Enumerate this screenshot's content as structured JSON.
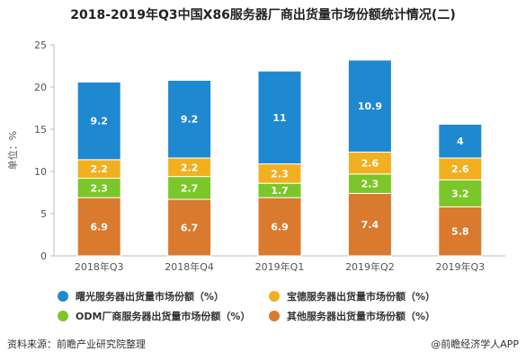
{
  "title": "2018-2019年Q3中国X86服务器厂商出货量市场份额统计情况(二)",
  "source": "资料来源：前瞻产业研究院整理",
  "brand": "@前瞻经济学人APP",
  "chart_data": {
    "type": "bar",
    "stacked": true,
    "categories": [
      "2018年Q3",
      "2018年Q4",
      "2019年Q1",
      "2019年Q2",
      "2019年Q3"
    ],
    "ylabel": "单位：%",
    "ylim": [
      0,
      25
    ],
    "yticks": [
      0,
      5,
      10,
      15,
      20,
      25
    ],
    "grid": false,
    "legend_position": "bottom",
    "series": [
      {
        "name": "其他服务器出货量市场份额（%）",
        "color": "#D97A2E",
        "values": [
          6.9,
          6.7,
          6.9,
          7.4,
          5.8
        ]
      },
      {
        "name": "ODM厂商服务器出货量市场份额（%）",
        "color": "#7BC729",
        "values": [
          2.3,
          2.7,
          1.7,
          2.3,
          3.2
        ]
      },
      {
        "name": "宝德服务器出货量市场份额（%）",
        "color": "#F2B021",
        "values": [
          2.2,
          2.2,
          2.3,
          2.6,
          2.6
        ]
      },
      {
        "name": "曙光服务器出货量市场份额（%）",
        "color": "#1E88D0",
        "values": [
          9.2,
          9.2,
          11,
          10.9,
          4
        ]
      }
    ],
    "legend_order": [
      3,
      2,
      1,
      0
    ]
  }
}
